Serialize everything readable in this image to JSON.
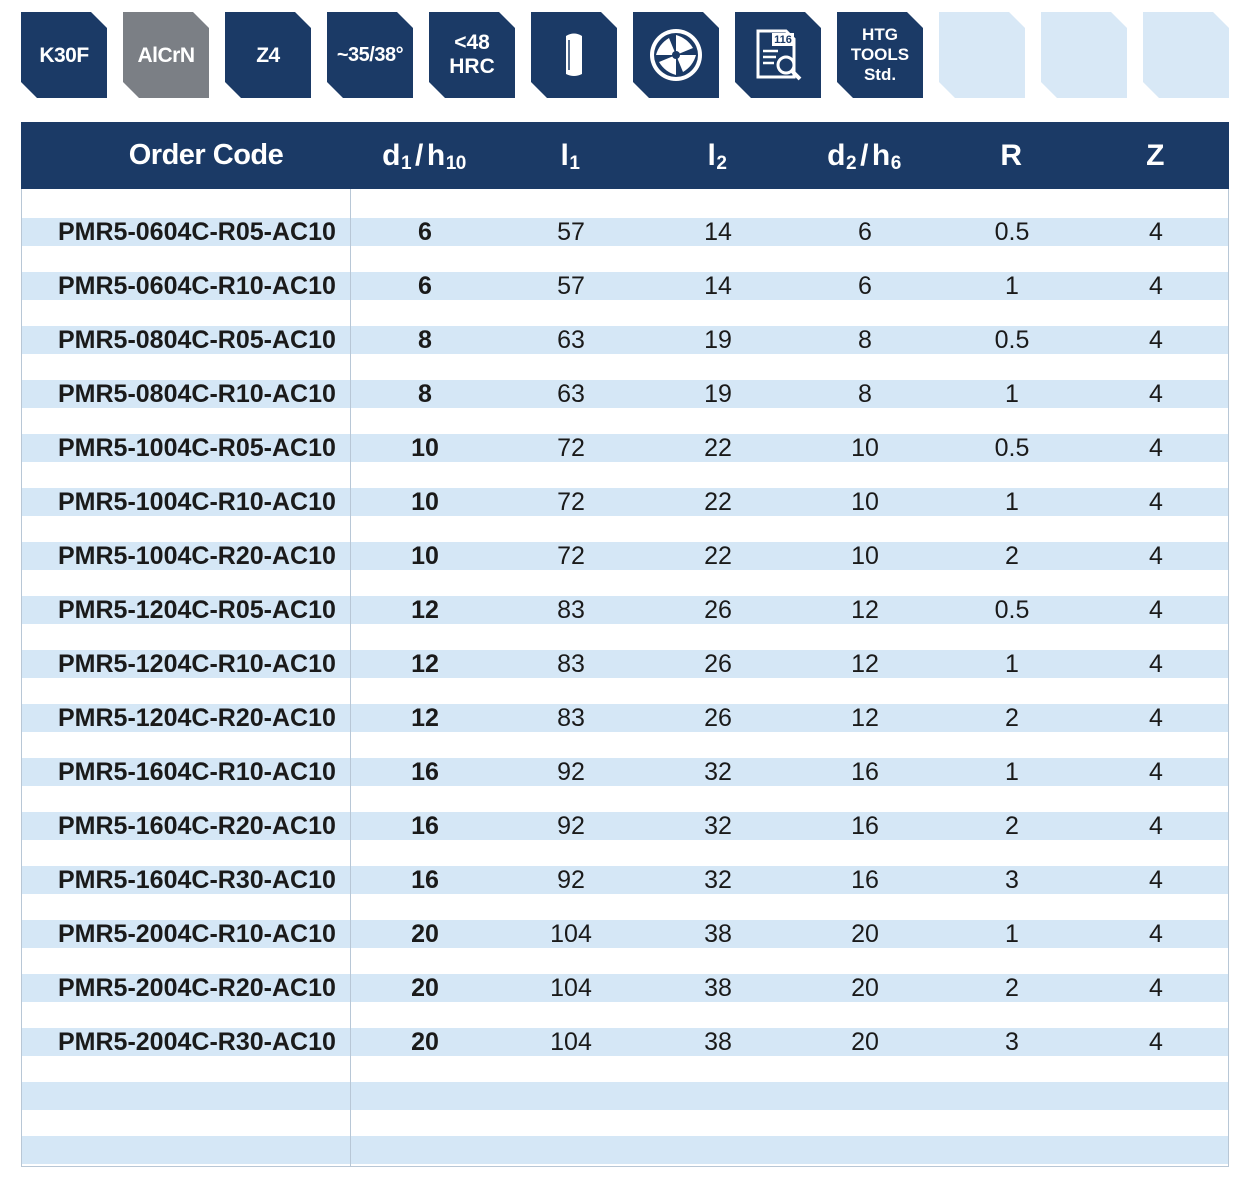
{
  "badges": [
    {
      "label": "K30F",
      "style": "navy",
      "icon": "material-grade-badge"
    },
    {
      "label": "AlCrN",
      "style": "grey",
      "icon": "coating-badge"
    },
    {
      "label": "Z4",
      "style": "navy",
      "icon": "flutes-badge"
    },
    {
      "label": "~35/38°",
      "style": "navy",
      "icon": "helix-angle-badge"
    },
    {
      "label_line1": "<48",
      "label_line2": "HRC",
      "style": "navy",
      "icon": "hardness-badge"
    },
    {
      "style": "navy",
      "icon": "cylindrical-shank-icon"
    },
    {
      "style": "navy",
      "icon": "end-mill-cross-section-icon"
    },
    {
      "icon_text": "116",
      "style": "navy",
      "icon": "cutting-data-document-icon"
    },
    {
      "label_line1": "HTG",
      "label_line2": "TOOLS",
      "label_line3": "Std.",
      "style": "navy",
      "icon": "standard-badge"
    },
    {
      "style": "empty"
    },
    {
      "style": "empty"
    },
    {
      "style": "empty"
    }
  ],
  "table": {
    "headers": {
      "order_code": "Order Code",
      "d1": {
        "main": "d",
        "sub": "1",
        "sep": "/",
        "main2": "h",
        "sub2": "10"
      },
      "l1": {
        "main": "l",
        "sub": "1"
      },
      "l2": {
        "main": "l",
        "sub": "2"
      },
      "d2": {
        "main": "d",
        "sub": "2",
        "sep": "/",
        "main2": "h",
        "sub2": "6"
      },
      "r": "R",
      "z": "Z"
    },
    "rows": [
      {
        "code": "PMR5-0604C-R05-AC10",
        "d1": "6",
        "l1": "57",
        "l2": "14",
        "d2": "6",
        "r": "0.5",
        "z": "4"
      },
      {
        "code": "PMR5-0604C-R10-AC10",
        "d1": "6",
        "l1": "57",
        "l2": "14",
        "d2": "6",
        "r": "1",
        "z": "4"
      },
      {
        "code": "PMR5-0804C-R05-AC10",
        "d1": "8",
        "l1": "63",
        "l2": "19",
        "d2": "8",
        "r": "0.5",
        "z": "4"
      },
      {
        "code": "PMR5-0804C-R10-AC10",
        "d1": "8",
        "l1": "63",
        "l2": "19",
        "d2": "8",
        "r": "1",
        "z": "4"
      },
      {
        "code": "PMR5-1004C-R05-AC10",
        "d1": "10",
        "l1": "72",
        "l2": "22",
        "d2": "10",
        "r": "0.5",
        "z": "4"
      },
      {
        "code": "PMR5-1004C-R10-AC10",
        "d1": "10",
        "l1": "72",
        "l2": "22",
        "d2": "10",
        "r": "1",
        "z": "4"
      },
      {
        "code": "PMR5-1004C-R20-AC10",
        "d1": "10",
        "l1": "72",
        "l2": "22",
        "d2": "10",
        "r": "2",
        "z": "4"
      },
      {
        "code": "PMR5-1204C-R05-AC10",
        "d1": "12",
        "l1": "83",
        "l2": "26",
        "d2": "12",
        "r": "0.5",
        "z": "4"
      },
      {
        "code": "PMR5-1204C-R10-AC10",
        "d1": "12",
        "l1": "83",
        "l2": "26",
        "d2": "12",
        "r": "1",
        "z": "4"
      },
      {
        "code": "PMR5-1204C-R20-AC10",
        "d1": "12",
        "l1": "83",
        "l2": "26",
        "d2": "12",
        "r": "2",
        "z": "4"
      },
      {
        "code": "PMR5-1604C-R10-AC10",
        "d1": "16",
        "l1": "92",
        "l2": "32",
        "d2": "16",
        "r": "1",
        "z": "4"
      },
      {
        "code": "PMR5-1604C-R20-AC10",
        "d1": "16",
        "l1": "92",
        "l2": "32",
        "d2": "16",
        "r": "2",
        "z": "4"
      },
      {
        "code": "PMR5-1604C-R30-AC10",
        "d1": "16",
        "l1": "92",
        "l2": "32",
        "d2": "16",
        "r": "3",
        "z": "4"
      },
      {
        "code": "PMR5-2004C-R10-AC10",
        "d1": "20",
        "l1": "104",
        "l2": "38",
        "d2": "20",
        "r": "1",
        "z": "4"
      },
      {
        "code": "PMR5-2004C-R20-AC10",
        "d1": "20",
        "l1": "104",
        "l2": "38",
        "d2": "20",
        "r": "2",
        "z": "4"
      },
      {
        "code": "PMR5-2004C-R30-AC10",
        "d1": "20",
        "l1": "104",
        "l2": "38",
        "d2": "20",
        "r": "3",
        "z": "4"
      }
    ]
  },
  "colors": {
    "navy": "#1b3a66",
    "grey": "#7b7f85",
    "stripe": "#d5e7f6",
    "empty_badge": "#d8e8f6"
  }
}
